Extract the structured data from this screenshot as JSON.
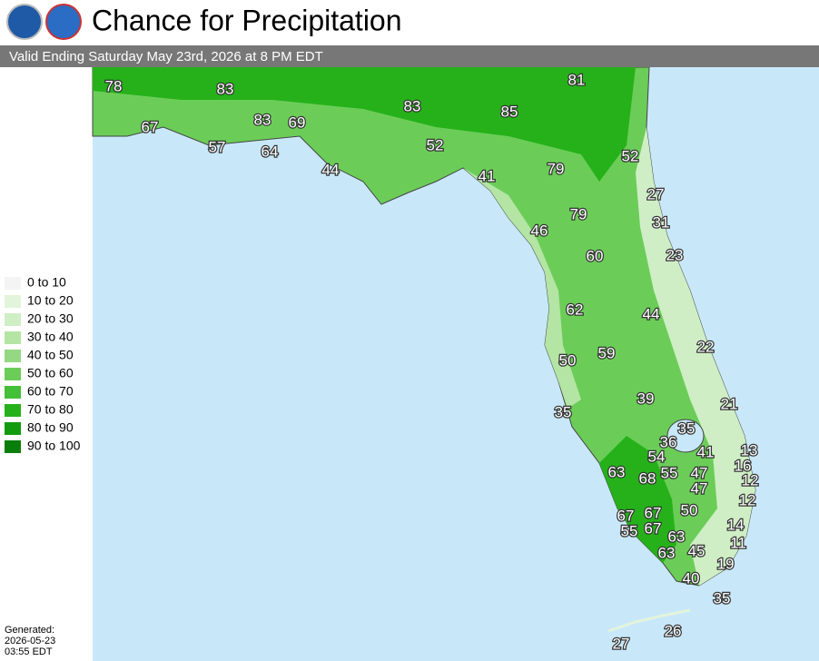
{
  "header": {
    "title": "Chance for Precipitation",
    "subtitle": "Valid Ending Saturday May 23rd, 2026 at 8 PM EDT"
  },
  "legend": [
    {
      "label": "0 to 10",
      "color": "#f4f4f4"
    },
    {
      "label": "10 to 20",
      "color": "#e2f4db"
    },
    {
      "label": "20 to 30",
      "color": "#cfeec5"
    },
    {
      "label": "30 to 40",
      "color": "#b4e5a4"
    },
    {
      "label": "40 to 50",
      "color": "#94d883"
    },
    {
      "label": "50 to 60",
      "color": "#6bcd58"
    },
    {
      "label": "60 to 70",
      "color": "#44bf38"
    },
    {
      "label": "70 to 80",
      "color": "#26b11a"
    },
    {
      "label": "80 to 90",
      "color": "#129b0e"
    },
    {
      "label": "90 to 100",
      "color": "#0a7e0a"
    }
  ],
  "generated": [
    "Generated:",
    "2026-05-23",
    "03:55 EDT"
  ],
  "labels": [
    "78",
    "83",
    "81",
    "67",
    "83",
    "69",
    "83",
    "85",
    "57",
    "64",
    "52",
    "52",
    "44",
    "41",
    "79",
    "27",
    "79",
    "31",
    "46",
    "60",
    "23",
    "62",
    "44",
    "22",
    "59",
    "50",
    "39",
    "21",
    "35",
    "35",
    "36",
    "41",
    "13",
    "54",
    "16",
    "63",
    "68",
    "55",
    "47",
    "12",
    "47",
    "12",
    "50",
    "67",
    "67",
    "55",
    "67",
    "14",
    "63",
    "11",
    "63",
    "45",
    "19",
    "40",
    "35",
    "26",
    "27"
  ]
}
